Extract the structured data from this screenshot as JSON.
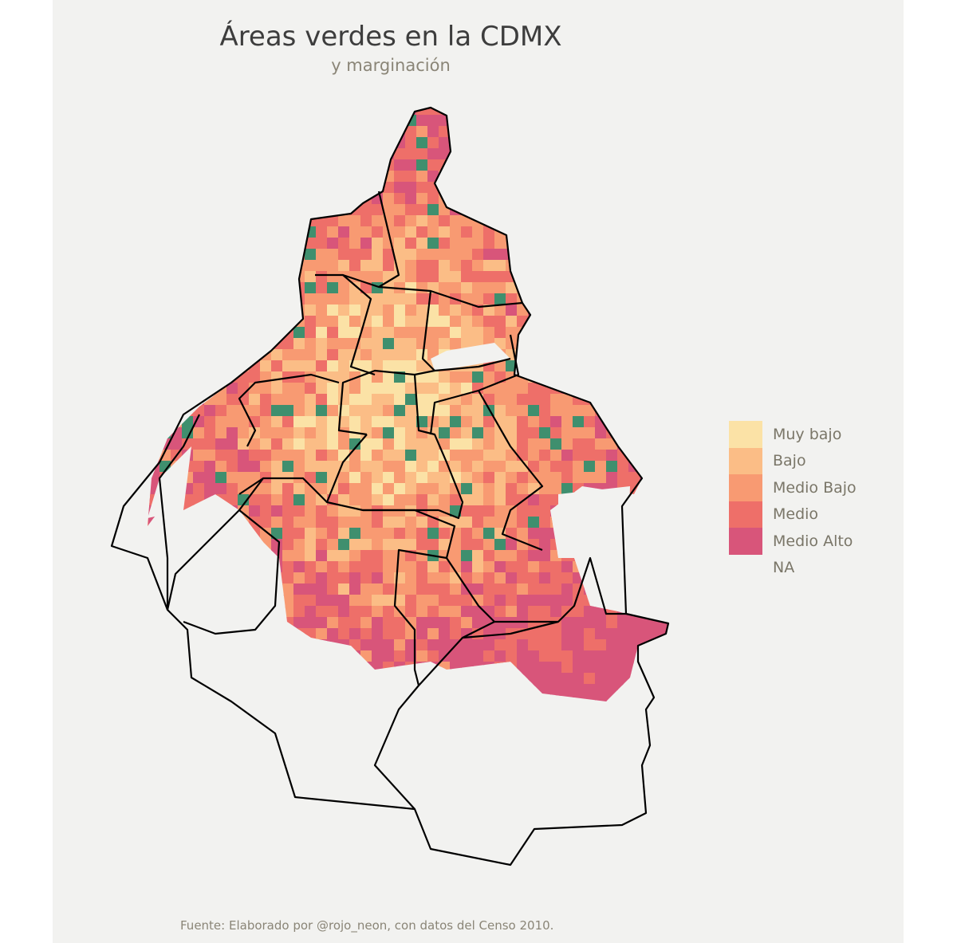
{
  "title": "Áreas verdes en la CDMX",
  "subtitle": "y marginación",
  "caption": "Fuente: Elaborado por @rojo_neon, con datos del Censo 2010.",
  "legend": {
    "items": [
      {
        "label": "Muy bajo",
        "color": "#fbe2a6"
      },
      {
        "label": "Bajo",
        "color": "#fbbd86"
      },
      {
        "label": "Medio Bajo",
        "color": "#f89a72"
      },
      {
        "label": "Medio",
        "color": "#ee6f69"
      },
      {
        "label": "Medio Alto",
        "color": "#d8557a"
      },
      {
        "label": "NA",
        "color": ""
      }
    ]
  },
  "colors": {
    "green_areas": "#3f8f6e",
    "background": "#f2f2f0",
    "boundary": "#000000"
  }
}
